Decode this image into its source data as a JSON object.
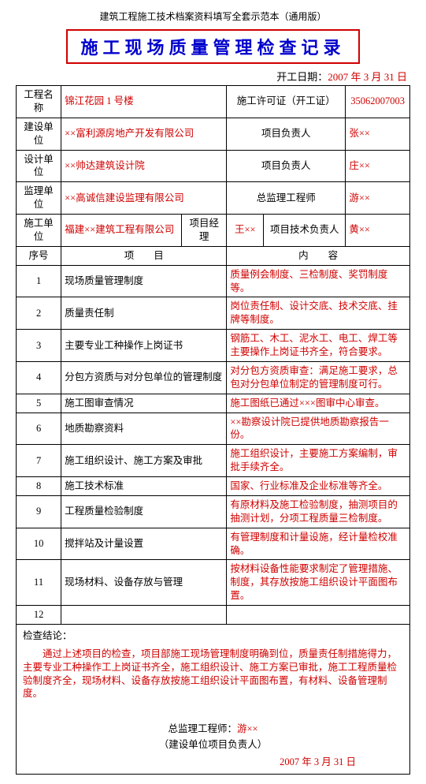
{
  "top_header": "建筑工程施工技术档案资料填写全套示范本（通用版）",
  "title": "施工现场质量管理检查记录",
  "start_date": {
    "label": "开工日期：",
    "value": "2007 年 3 月 31 日"
  },
  "info": {
    "proj_name_lbl": "工程名称",
    "proj_name_val": "锦江花园 1 号楼",
    "permit_lbl": "施工许可证（开工证）",
    "permit_val": "35062007003",
    "build_unit_lbl": "建设单位",
    "build_unit_val": "××富利源房地产开发有限公司",
    "build_resp_lbl": "项目负责人",
    "build_resp_val": "张××",
    "design_unit_lbl": "设计单位",
    "design_unit_val": "××帅达建筑设计院",
    "design_resp_lbl": "项目负责人",
    "design_resp_val": "庄××",
    "super_unit_lbl": "监理单位",
    "super_unit_val": "××高诚信建设监理有限公司",
    "super_resp_lbl": "总监理工程师",
    "super_resp_val": "游××",
    "cons_unit_lbl": "施工单位",
    "cons_unit_val": "福建××建筑工程有限公司",
    "pm_lbl": "项目经理",
    "pm_val": "王××",
    "tech_resp_lbl": "项目技术负责人",
    "tech_resp_val": "黄××"
  },
  "headers": {
    "seq": "序号",
    "item": "项　　目",
    "content": "内　　容"
  },
  "rows": [
    {
      "n": "1",
      "item": "现场质量管理制度",
      "content": "质量例会制度、三检制度、奖罚制度等。"
    },
    {
      "n": "2",
      "item": "质量责任制",
      "content": "岗位责任制、设计交底、技术交底、挂牌等制度。"
    },
    {
      "n": "3",
      "item": "主要专业工种操作上岗证书",
      "content": "钢筋工、木工、泥水工、电工、焊工等主要操作上岗证书齐全，符合要求。"
    },
    {
      "n": "4",
      "item": "分包方资质与对分包单位的管理制度",
      "content": "对分包方资质审查：满足施工要求，总包对分包单位制定的管理制度可行。"
    },
    {
      "n": "5",
      "item": "施工图审查情况",
      "content": "施工图纸已通过×××图审中心审查。"
    },
    {
      "n": "6",
      "item": "地质勘察资料",
      "content": "××勘察设计院已提供地质勘察报告一份。"
    },
    {
      "n": "7",
      "item": "施工组织设计、施工方案及审批",
      "content": "施工组织设计，主要施工方案编制，审批手续齐全。"
    },
    {
      "n": "8",
      "item": "施工技术标准",
      "content": "国家、行业标准及企业标准等齐全。"
    },
    {
      "n": "9",
      "item": "工程质量检验制度",
      "content": "有原材料及施工检验制度，抽测项目的抽测计划，分项工程质量三检制度。"
    },
    {
      "n": "10",
      "item": "搅拌站及计量设置",
      "content": "有管理制度和计量设施，经计量检校准确。"
    },
    {
      "n": "11",
      "item": "现场材料、设备存放与管理",
      "content": "按材料设备性能要求制定了管理措施、制度，其存放按施工组织设计平面图布置。"
    },
    {
      "n": "12",
      "item": "",
      "content": ""
    }
  ],
  "conclusion": {
    "label": "检查结论：",
    "body": "通过上述项目的检查，项目部施工现场管理制度明确到位，质量责任制措施得力，主要专业工种操作工上岗证书齐全，施工组织设计、施工方案已审批，施工工程质量检验制度齐全，现场材料、设备存放按施工组织设计平面图布置，有材料、设备管理制度。",
    "sign_chief_lbl": "总监理工程师：",
    "sign_chief_val": "游××",
    "sign_owner": "（建设单位项目负责人）",
    "sign_date": "2007 年 3 月 31 日"
  }
}
